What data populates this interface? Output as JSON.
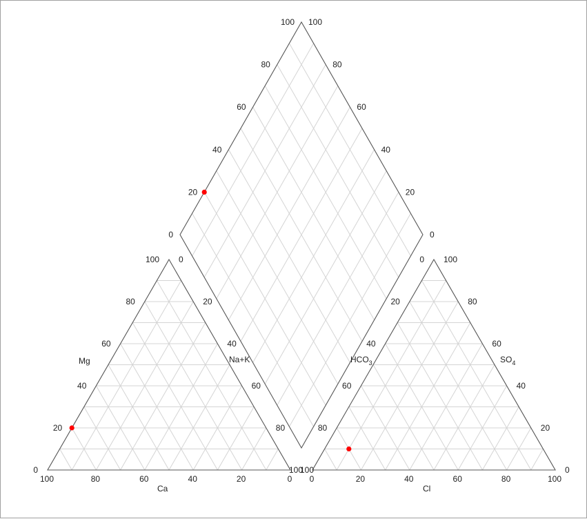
{
  "chart_data": {
    "type": "scatter",
    "title": "",
    "grid": true,
    "tick_values": [
      0,
      20,
      40,
      60,
      80,
      100
    ],
    "colors": {
      "grid": "#d4d4d4",
      "outline": "#555555",
      "point": "#ff0000",
      "text": "#222222"
    },
    "cation_triangle": {
      "axis_labels": {
        "mg": "Mg",
        "ca": "Ca",
        "na_k": "Na+K"
      },
      "points": [
        {
          "mg": 20,
          "ca": 80,
          "na_k": 0
        }
      ]
    },
    "anion_triangle": {
      "axis_labels": {
        "hco3": "HCO",
        "hco3_sub": "3",
        "so4": "SO",
        "so4_sub": "4",
        "cl": "Cl"
      },
      "points": [
        {
          "hco3": 80,
          "cl": 10,
          "so4": 10
        }
      ]
    },
    "diamond": {
      "points": [
        {
          "ca_mg": 20,
          "so4_cl": 20
        }
      ]
    }
  }
}
